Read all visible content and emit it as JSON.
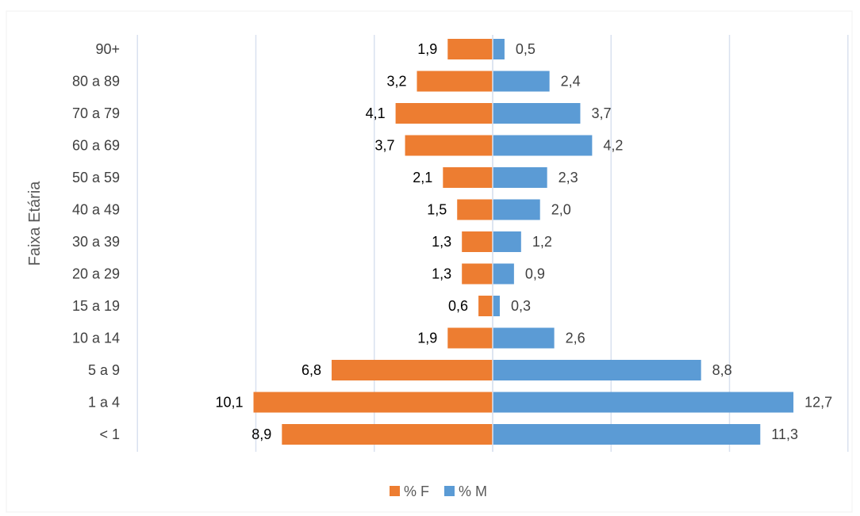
{
  "chart_data": {
    "type": "bar",
    "orientation": "horizontal",
    "layout": "population-pyramid",
    "title": "",
    "xlabel": "",
    "ylabel": "Faixa Etária",
    "categories": [
      "90+",
      "80 a 89",
      "70 a 79",
      "60 a 69",
      "50 a 59",
      "40 a 49",
      "30 a 39",
      "20 a 29",
      "15 a 19",
      "10 a 14",
      "5 a 9",
      "1 a 4",
      "< 1"
    ],
    "series": [
      {
        "name": "% F",
        "color": "#ed7d31",
        "side": "left",
        "values": [
          1.9,
          3.2,
          4.1,
          3.7,
          2.1,
          1.5,
          1.3,
          1.3,
          0.6,
          1.9,
          6.8,
          10.1,
          8.9
        ],
        "labels": [
          "1,9",
          "3,2",
          "4,1",
          "3,7",
          "2,1",
          "1,5",
          "1,3",
          "1,3",
          "0,6",
          "1,9",
          "6,8",
          "10,1",
          "8,9"
        ]
      },
      {
        "name": "% M",
        "color": "#5b9bd5",
        "side": "right",
        "values": [
          0.5,
          2.4,
          3.7,
          4.2,
          2.3,
          2.0,
          1.2,
          0.9,
          0.3,
          2.6,
          8.8,
          12.7,
          11.3
        ],
        "labels": [
          "0,5",
          "2,4",
          "3,7",
          "4,2",
          "2,3",
          "2,0",
          "1,2",
          "0,9",
          "0,3",
          "2,6",
          "8,8",
          "12,7",
          "11,3"
        ]
      }
    ],
    "xlim": [
      -15,
      15
    ],
    "gridlines_at": [
      -15,
      -10,
      -5,
      0,
      5,
      10,
      15
    ],
    "grid": true,
    "legend_position": "bottom"
  }
}
